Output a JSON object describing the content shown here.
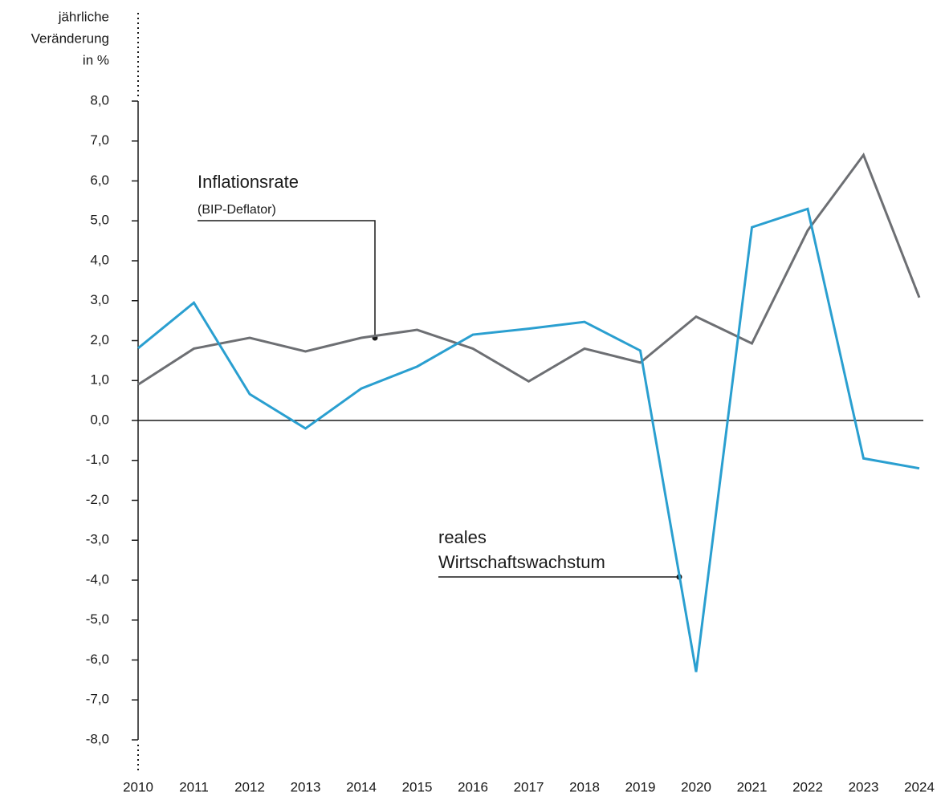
{
  "chart_data": {
    "type": "line",
    "ylabel": [
      "jährliche",
      "Veränderung",
      "in %"
    ],
    "x": [
      2010,
      2011,
      2012,
      2013,
      2014,
      2015,
      2016,
      2017,
      2018,
      2019,
      2020,
      2021,
      2022,
      2023,
      2024
    ],
    "xlim": [
      2010,
      2024
    ],
    "xticks": [
      2010,
      2011,
      2012,
      2013,
      2014,
      2015,
      2016,
      2017,
      2018,
      2019,
      2020,
      2021,
      2022,
      2023,
      2024
    ],
    "ylim": [
      -8,
      8
    ],
    "yticks": [
      {
        "value": 8,
        "label": "8,0"
      },
      {
        "value": 7,
        "label": "7,0"
      },
      {
        "value": 6,
        "label": "6,0"
      },
      {
        "value": 5,
        "label": "5,0"
      },
      {
        "value": 4,
        "label": "4,0"
      },
      {
        "value": 3,
        "label": "3,0"
      },
      {
        "value": 2,
        "label": "2,0"
      },
      {
        "value": 1,
        "label": "1,0"
      },
      {
        "value": 0,
        "label": "0,0"
      },
      {
        "value": -1,
        "label": "-1,0"
      },
      {
        "value": -2,
        "label": "-2,0"
      },
      {
        "value": -3,
        "label": "-3,0"
      },
      {
        "value": -4,
        "label": "-4,0"
      },
      {
        "value": -5,
        "label": "-5,0"
      },
      {
        "value": -6,
        "label": "-6,0"
      },
      {
        "value": -7,
        "label": "-7,0"
      },
      {
        "value": -8,
        "label": "-8,0"
      }
    ],
    "series": [
      {
        "name": "Inflationsrate",
        "detail": "(BIP-Deflator)",
        "color": "#6d6f73",
        "values": [
          0.9,
          1.8,
          2.07,
          1.73,
          2.07,
          2.27,
          1.8,
          0.98,
          1.8,
          1.45,
          2.6,
          1.93,
          4.76,
          6.65,
          3.08
        ]
      },
      {
        "name_lines": [
          "reales",
          "Wirtschaftswachstum"
        ],
        "color": "#2a9fd0",
        "values": [
          1.81,
          2.95,
          0.66,
          -0.2,
          0.8,
          1.35,
          2.15,
          2.3,
          2.47,
          1.75,
          -6.3,
          4.84,
          5.3,
          -0.95,
          -1.2
        ]
      }
    ]
  }
}
